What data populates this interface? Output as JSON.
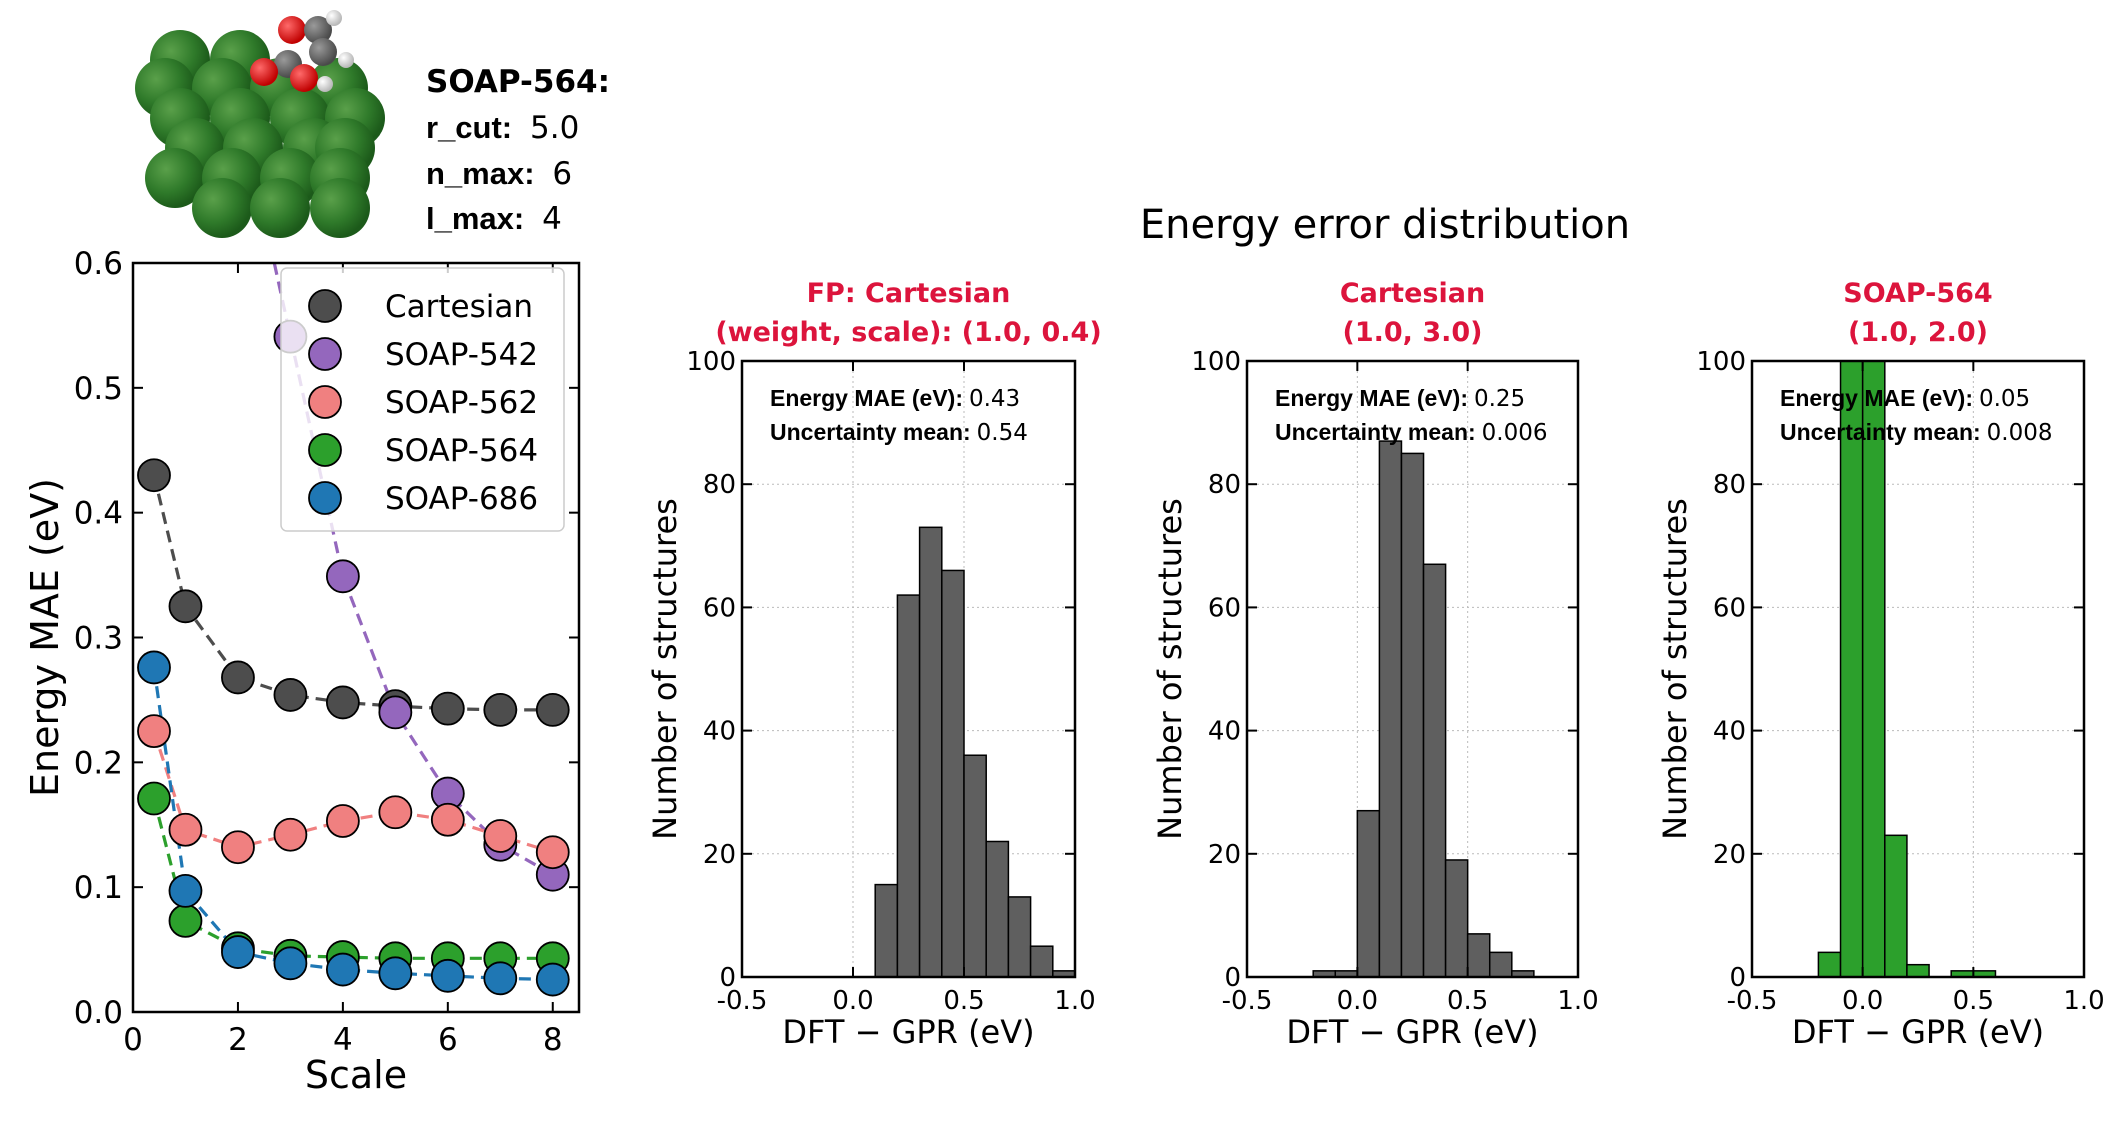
{
  "descriptor_box": {
    "title": "SOAP-564:",
    "params": [
      {
        "key": "r_cut:",
        "value": "5.0"
      },
      {
        "key": "n_max:",
        "value": "6"
      },
      {
        "key": "l_max:",
        "value": "4"
      }
    ]
  },
  "suptitle": "Energy error distribution",
  "colors": {
    "Cartesian": "#4d4d4d",
    "SOAP-542": "#9467bd",
    "SOAP-562": "#f08080",
    "SOAP-564": "#2ca02c",
    "SOAP-686": "#1f77b4",
    "subtitle": "#dc143c",
    "hist_gray": "#5f5f5f",
    "hist_green": "#2ca02c"
  },
  "chart_data": [
    {
      "type": "line",
      "title": "",
      "xlabel": "Scale",
      "ylabel": "Energy MAE (eV)",
      "xlim": [
        0,
        8.5
      ],
      "ylim": [
        0,
        0.6
      ],
      "xticks": [
        "0",
        "2",
        "4",
        "6",
        "8"
      ],
      "yticks": [
        "0.0",
        "0.1",
        "0.2",
        "0.3",
        "0.4",
        "0.5",
        "0.6"
      ],
      "legend_loc": "upper right",
      "series": [
        {
          "name": "Cartesian",
          "x": [
            0.4,
            1,
            2,
            3,
            4,
            5,
            6,
            7,
            8
          ],
          "y": [
            0.43,
            0.325,
            0.268,
            0.254,
            0.248,
            0.245,
            0.243,
            0.242,
            0.242
          ]
        },
        {
          "name": "SOAP-542",
          "x": [
            3,
            4,
            5,
            6,
            7,
            8
          ],
          "y": [
            0.541,
            0.349,
            0.24,
            0.175,
            0.134,
            0.11
          ],
          "line_starts_at_y": 0.6
        },
        {
          "name": "SOAP-562",
          "x": [
            0.4,
            1,
            2,
            3,
            4,
            5,
            6,
            7,
            8
          ],
          "y": [
            0.225,
            0.146,
            0.132,
            0.142,
            0.153,
            0.16,
            0.154,
            0.141,
            0.128
          ]
        },
        {
          "name": "SOAP-564",
          "x": [
            0.4,
            1,
            2,
            3,
            4,
            5,
            6,
            7,
            8
          ],
          "y": [
            0.171,
            0.073,
            0.051,
            0.045,
            0.044,
            0.043,
            0.043,
            0.043,
            0.043
          ]
        },
        {
          "name": "SOAP-686",
          "x": [
            0.4,
            1,
            2,
            3,
            4,
            5,
            6,
            7,
            8
          ],
          "y": [
            0.276,
            0.097,
            0.048,
            0.039,
            0.034,
            0.031,
            0.029,
            0.027,
            0.026
          ]
        }
      ]
    },
    {
      "type": "bar",
      "title_lines": [
        "FP: Cartesian",
        "(weight, scale): (1.0, 0.4)"
      ],
      "xlabel": "DFT − GPR (eV)",
      "ylabel": "Number of structures",
      "xlim": [
        -0.5,
        1.0
      ],
      "ylim": [
        0,
        100
      ],
      "xticks": [
        "-0.5",
        "0.0",
        "0.5",
        "1.0"
      ],
      "yticks": [
        "0",
        "20",
        "40",
        "60",
        "80",
        "100"
      ],
      "annotation": [
        {
          "label": "Energy MAE (eV):",
          "value": "0.43"
        },
        {
          "label": "Uncertainty mean:",
          "value": "0.54"
        }
      ],
      "bin_edges": [
        0.1,
        0.2,
        0.3,
        0.4,
        0.5,
        0.6,
        0.7,
        0.8,
        0.9,
        1.0
      ],
      "counts": [
        15,
        62,
        73,
        66,
        36,
        22,
        13,
        5,
        1
      ],
      "color": "hist_gray"
    },
    {
      "type": "bar",
      "title_lines": [
        "Cartesian",
        "(1.0, 3.0)"
      ],
      "xlabel": "DFT − GPR (eV)",
      "ylabel": "Number of structures",
      "xlim": [
        -0.5,
        1.0
      ],
      "ylim": [
        0,
        100
      ],
      "xticks": [
        "-0.5",
        "0.0",
        "0.5",
        "1.0"
      ],
      "yticks": [
        "0",
        "20",
        "40",
        "60",
        "80",
        "100"
      ],
      "annotation": [
        {
          "label": "Energy MAE (eV):",
          "value": "0.25"
        },
        {
          "label": "Uncertainty mean:",
          "value": "0.006"
        }
      ],
      "bin_edges": [
        -0.2,
        -0.1,
        0.0,
        0.1,
        0.2,
        0.3,
        0.4,
        0.5,
        0.6,
        0.7,
        0.8
      ],
      "counts": [
        1,
        1,
        27,
        87,
        85,
        67,
        19,
        7,
        4,
        1
      ],
      "color": "hist_gray"
    },
    {
      "type": "bar",
      "title_lines": [
        "SOAP-564",
        "(1.0, 2.0)"
      ],
      "xlabel": "DFT − GPR (eV)",
      "ylabel": "Number of structures",
      "xlim": [
        -0.5,
        1.0
      ],
      "ylim": [
        0,
        100
      ],
      "xticks": [
        "-0.5",
        "0.0",
        "0.5",
        "1.0"
      ],
      "yticks": [
        "0",
        "20",
        "40",
        "60",
        "80",
        "100"
      ],
      "annotation": [
        {
          "label": "Energy MAE (eV):",
          "value": "0.05"
        },
        {
          "label": "Uncertainty mean:",
          "value": "0.008"
        }
      ],
      "bin_edges": [
        -0.2,
        -0.1,
        0.0,
        0.1,
        0.2,
        0.3,
        0.4,
        0.5,
        0.6
      ],
      "counts": [
        4,
        100,
        100,
        23,
        2,
        0,
        1,
        1
      ],
      "color": "hist_green"
    }
  ]
}
